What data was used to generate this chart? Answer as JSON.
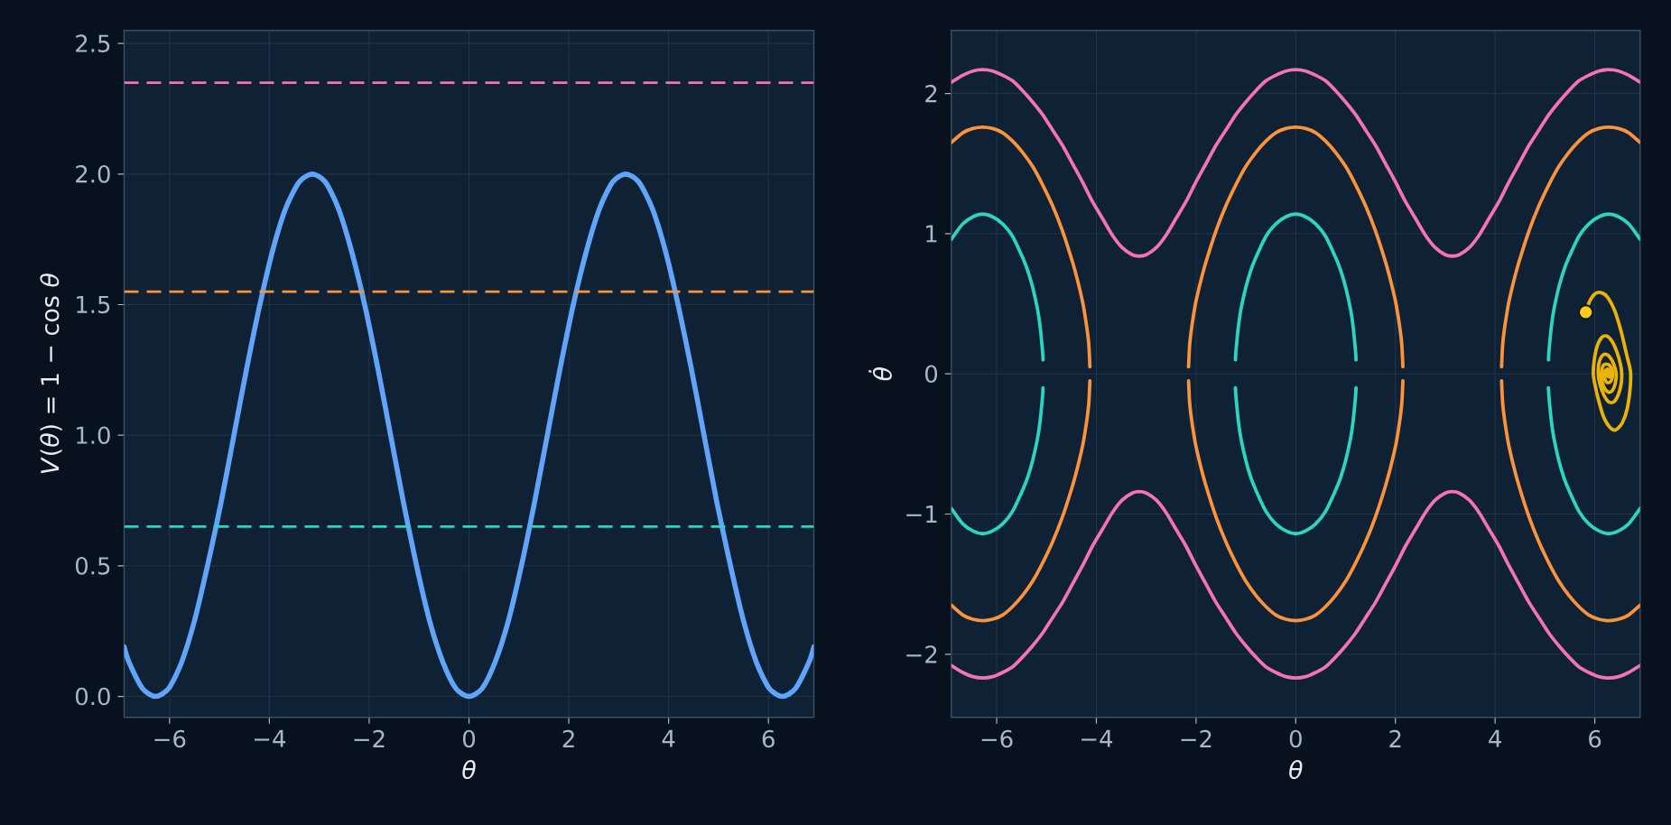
{
  "chart_data": [
    {
      "type": "line",
      "xlabel": "θ",
      "ylabel": "*V*(*θ*) = 1 − cos *θ*",
      "xlim": [
        -6.91,
        6.91
      ],
      "ylim": [
        -0.08,
        2.55
      ],
      "xticks": [
        {
          "value": -6,
          "label": "−6"
        },
        {
          "value": -4,
          "label": "−4"
        },
        {
          "value": -2,
          "label": "−2"
        },
        0,
        2,
        4,
        6
      ],
      "yticks": [
        {
          "value": 0,
          "label": "0.0"
        },
        0.5,
        {
          "value": 1,
          "label": "1.0"
        },
        1.5,
        {
          "value": 2,
          "label": "2.0"
        },
        2.5
      ],
      "grid": true,
      "x": [
        -6.91,
        -6.81,
        -6.54,
        -6.28,
        -6.02,
        -5.76,
        -5.5,
        -5.24,
        -4.97,
        -4.71,
        -4.45,
        -4.19,
        -3.93,
        -3.67,
        -3.4,
        -3.14,
        -2.88,
        -2.62,
        -2.36,
        -2.09,
        -1.83,
        -1.57,
        -1.31,
        -1.05,
        -0.79,
        -0.52,
        -0.26,
        0,
        0.26,
        0.52,
        0.79,
        1.05,
        1.31,
        1.57,
        1.83,
        2.09,
        2.36,
        2.62,
        2.88,
        3.14,
        3.4,
        3.67,
        3.93,
        4.19,
        4.45,
        4.71,
        4.97,
        5.24,
        5.5,
        5.76,
        6.02,
        6.28,
        6.54,
        6.81,
        6.91
      ],
      "series": [
        {
          "color": "#60a5fa",
          "values": [
            0.19,
            0.13,
            0.03,
            0,
            0.03,
            0.13,
            0.29,
            0.5,
            0.74,
            1,
            1.26,
            1.5,
            1.71,
            1.87,
            1.97,
            2,
            1.97,
            1.87,
            1.71,
            1.5,
            1.26,
            1,
            0.74,
            0.5,
            0.29,
            0.13,
            0.03,
            0,
            0.03,
            0.13,
            0.29,
            0.5,
            0.74,
            1,
            1.26,
            1.5,
            1.71,
            1.87,
            1.97,
            2,
            1.97,
            1.87,
            1.71,
            1.5,
            1.26,
            1,
            0.74,
            0.5,
            0.29,
            0.13,
            0.03,
            0,
            0.03,
            0.13,
            0.19
          ]
        }
      ],
      "ref_lines": [
        {
          "axis": "y",
          "value": 0.65,
          "color": "#2dd4bf",
          "line_style": "dashed"
        },
        {
          "axis": "y",
          "value": 1.55,
          "color": "#fb923c",
          "line_style": "dashed"
        },
        {
          "axis": "y",
          "value": 2.35,
          "color": "#f472b6",
          "line_style": "dashed"
        }
      ]
    },
    {
      "type": "line",
      "xlabel": "θ",
      "ylabel": "θ̇",
      "xlim": [
        -6.91,
        6.91
      ],
      "ylim": [
        -2.45,
        2.45
      ],
      "xticks": [
        {
          "value": -6,
          "label": "−6"
        },
        {
          "value": -4,
          "label": "−4"
        },
        {
          "value": -2,
          "label": "−2"
        },
        0,
        2,
        4,
        6
      ],
      "yticks": [
        {
          "value": -2,
          "label": "−2"
        },
        {
          "value": -1,
          "label": "−1"
        },
        0,
        1,
        2
      ],
      "grid": true,
      "series": [
        {
          "color": "#2dd4bf",
          "x": [
            -6.91,
            -6.68,
            -6.48,
            -6.28,
            -6.08,
            -5.88,
            -5.68,
            -5.48,
            -5.38,
            -5.28,
            -5.18,
            -5.13,
            -5.08,
            -5.07,
            -3.14,
            -1.21,
            -1.2,
            -1.15,
            -1.1,
            -1.0,
            -0.9,
            -0.8,
            -0.6,
            -0.4,
            -0.2,
            0,
            0.2,
            0.4,
            0.6,
            0.8,
            0.9,
            1.0,
            1.1,
            1.15,
            1.2,
            1.21,
            3.14,
            5.07,
            5.08,
            5.13,
            5.18,
            5.28,
            5.38,
            5.48,
            5.68,
            5.88,
            6.08,
            6.28,
            6.48,
            6.68,
            6.91
          ],
          "values": [
            0.96,
            1.07,
            1.12,
            1.14,
            1.12,
            1.07,
            0.98,
            0.83,
            0.74,
            0.62,
            0.46,
            0.34,
            0.16,
            0.1,
            null,
            0.1,
            0.16,
            0.34,
            0.46,
            0.62,
            0.74,
            0.83,
            0.98,
            1.07,
            1.12,
            1.14,
            1.12,
            1.07,
            0.98,
            0.83,
            0.74,
            0.62,
            0.46,
            0.34,
            0.16,
            0.1,
            null,
            0.1,
            0.16,
            0.34,
            0.46,
            0.62,
            0.74,
            0.83,
            0.98,
            1.07,
            1.12,
            1.14,
            1.12,
            1.07,
            0.96
          ]
        },
        {
          "color": "#2dd4bf",
          "x": [
            -6.91,
            -6.68,
            -6.48,
            -6.28,
            -6.08,
            -5.88,
            -5.68,
            -5.48,
            -5.38,
            -5.28,
            -5.18,
            -5.13,
            -5.08,
            -5.07,
            -3.14,
            -1.21,
            -1.2,
            -1.15,
            -1.1,
            -1.0,
            -0.9,
            -0.8,
            -0.6,
            -0.4,
            -0.2,
            0,
            0.2,
            0.4,
            0.6,
            0.8,
            0.9,
            1.0,
            1.1,
            1.15,
            1.2,
            1.21,
            3.14,
            5.07,
            5.08,
            5.13,
            5.18,
            5.28,
            5.38,
            5.48,
            5.68,
            5.88,
            6.08,
            6.28,
            6.48,
            6.68,
            6.91
          ],
          "values": [
            -0.96,
            -1.07,
            -1.12,
            -1.14,
            -1.12,
            -1.07,
            -0.98,
            -0.83,
            -0.74,
            -0.62,
            -0.46,
            -0.34,
            -0.16,
            -0.1,
            null,
            -0.1,
            -0.16,
            -0.34,
            -0.46,
            -0.62,
            -0.74,
            -0.83,
            -0.98,
            -1.07,
            -1.12,
            -1.14,
            -1.12,
            -1.07,
            -0.98,
            -0.83,
            -0.74,
            -0.62,
            -0.46,
            -0.34,
            -0.16,
            -0.1,
            null,
            -0.1,
            -0.16,
            -0.34,
            -0.46,
            -0.62,
            -0.74,
            -0.83,
            -0.98,
            -1.07,
            -1.12,
            -1.14,
            -1.12,
            -1.07,
            -0.96
          ]
        },
        {
          "color": "#fb923c",
          "x": [
            -6.91,
            -6.68,
            -6.48,
            -6.28,
            -6.08,
            -5.88,
            -5.68,
            -5.48,
            -5.28,
            -5.08,
            -4.88,
            -4.68,
            -4.48,
            -4.38,
            -4.28,
            -4.23,
            -4.18,
            -4.15,
            -4.13,
            -3.14,
            -2.15,
            -2.13,
            -2.1,
            -2.05,
            -2.0,
            -1.9,
            -1.8,
            -1.6,
            -1.4,
            -1.2,
            -1.0,
            -0.8,
            -0.6,
            -0.4,
            -0.2,
            0,
            0.2,
            0.4,
            0.6,
            0.8,
            1.0,
            1.2,
            1.4,
            1.6,
            1.8,
            1.9,
            2.0,
            2.05,
            2.1,
            2.13,
            2.15,
            3.14,
            4.13,
            4.15,
            4.18,
            4.23,
            4.28,
            4.38,
            4.48,
            4.68,
            4.88,
            5.08,
            5.28,
            5.48,
            5.68,
            5.88,
            6.08,
            6.28,
            6.48,
            6.68,
            6.91
          ],
          "values": [
            1.65,
            1.72,
            1.75,
            1.76,
            1.75,
            1.72,
            1.66,
            1.58,
            1.48,
            1.35,
            1.2,
            1.02,
            0.8,
            0.67,
            0.52,
            0.42,
            0.3,
            0.2,
            0.05,
            null,
            0.05,
            0.2,
            0.3,
            0.42,
            0.52,
            0.67,
            0.8,
            1.02,
            1.2,
            1.35,
            1.48,
            1.58,
            1.66,
            1.72,
            1.75,
            1.76,
            1.75,
            1.72,
            1.66,
            1.58,
            1.48,
            1.35,
            1.2,
            1.02,
            0.8,
            0.67,
            0.52,
            0.42,
            0.3,
            0.2,
            0.05,
            null,
            0.05,
            0.2,
            0.3,
            0.42,
            0.52,
            0.67,
            0.8,
            1.02,
            1.2,
            1.35,
            1.48,
            1.58,
            1.66,
            1.72,
            1.75,
            1.76,
            1.75,
            1.72,
            1.65
          ]
        },
        {
          "color": "#fb923c",
          "x": [
            -6.91,
            -6.68,
            -6.48,
            -6.28,
            -6.08,
            -5.88,
            -5.68,
            -5.48,
            -5.28,
            -5.08,
            -4.88,
            -4.68,
            -4.48,
            -4.38,
            -4.28,
            -4.23,
            -4.18,
            -4.15,
            -4.13,
            -3.14,
            -2.15,
            -2.13,
            -2.1,
            -2.05,
            -2.0,
            -1.9,
            -1.8,
            -1.6,
            -1.4,
            -1.2,
            -1.0,
            -0.8,
            -0.6,
            -0.4,
            -0.2,
            0,
            0.2,
            0.4,
            0.6,
            0.8,
            1.0,
            1.2,
            1.4,
            1.6,
            1.8,
            1.9,
            2.0,
            2.05,
            2.1,
            2.13,
            2.15,
            3.14,
            4.13,
            4.15,
            4.18,
            4.23,
            4.28,
            4.38,
            4.48,
            4.68,
            4.88,
            5.08,
            5.28,
            5.48,
            5.68,
            5.88,
            6.08,
            6.28,
            6.48,
            6.68,
            6.91
          ],
          "values": [
            -1.65,
            -1.72,
            -1.75,
            -1.76,
            -1.75,
            -1.72,
            -1.66,
            -1.58,
            -1.48,
            -1.35,
            -1.2,
            -1.02,
            -0.8,
            -0.67,
            -0.52,
            -0.42,
            -0.3,
            -0.2,
            -0.05,
            null,
            -0.05,
            -0.2,
            -0.3,
            -0.42,
            -0.52,
            -0.67,
            -0.8,
            -1.02,
            -1.2,
            -1.35,
            -1.48,
            -1.58,
            -1.66,
            -1.72,
            -1.75,
            -1.76,
            -1.75,
            -1.72,
            -1.66,
            -1.58,
            -1.48,
            -1.35,
            -1.2,
            -1.02,
            -0.8,
            -0.67,
            -0.52,
            -0.42,
            -0.3,
            -0.2,
            -0.05,
            null,
            -0.05,
            -0.2,
            -0.3,
            -0.42,
            -0.52,
            -0.67,
            -0.8,
            -1.02,
            -1.2,
            -1.35,
            -1.48,
            -1.58,
            -1.66,
            -1.72,
            -1.75,
            -1.76,
            -1.75,
            -1.72,
            -1.65
          ]
        },
        {
          "color": "#f472b6",
          "x": [
            -6.91,
            -6.68,
            -6.48,
            -6.28,
            -6.08,
            -5.88,
            -5.68,
            -5.48,
            -5.28,
            -5.08,
            -4.88,
            -4.68,
            -4.48,
            -4.28,
            -4.08,
            -3.88,
            -3.68,
            -3.48,
            -3.28,
            -3.14,
            -3.0,
            -2.8,
            -2.6,
            -2.4,
            -2.2,
            -2.0,
            -1.8,
            -1.6,
            -1.4,
            -1.2,
            -1.0,
            -0.8,
            -0.6,
            -0.4,
            -0.2,
            0,
            0.2,
            0.4,
            0.6,
            0.8,
            1.0,
            1.2,
            1.4,
            1.6,
            1.8,
            2.0,
            2.2,
            2.4,
            2.6,
            2.8,
            3.0,
            3.14,
            3.28,
            3.48,
            3.68,
            3.88,
            4.08,
            4.28,
            4.48,
            4.68,
            4.88,
            5.08,
            5.28,
            5.48,
            5.68,
            5.88,
            6.08,
            6.28,
            6.48,
            6.68,
            6.91
          ],
          "values": [
            2.08,
            2.13,
            2.16,
            2.17,
            2.16,
            2.13,
            2.09,
            2.02,
            1.94,
            1.85,
            1.74,
            1.63,
            1.5,
            1.37,
            1.23,
            1.11,
            0.99,
            0.9,
            0.85,
            0.84,
            0.85,
            0.9,
            0.99,
            1.11,
            1.23,
            1.37,
            1.5,
            1.63,
            1.74,
            1.85,
            1.94,
            2.02,
            2.09,
            2.13,
            2.16,
            2.17,
            2.16,
            2.13,
            2.09,
            2.02,
            1.94,
            1.85,
            1.74,
            1.63,
            1.5,
            1.37,
            1.23,
            1.11,
            0.99,
            0.9,
            0.85,
            0.84,
            0.85,
            0.9,
            0.99,
            1.11,
            1.23,
            1.37,
            1.5,
            1.63,
            1.74,
            1.85,
            1.94,
            2.02,
            2.09,
            2.13,
            2.16,
            2.17,
            2.16,
            2.13,
            2.08
          ]
        },
        {
          "color": "#f472b6",
          "x": [
            -6.91,
            -6.68,
            -6.48,
            -6.28,
            -6.08,
            -5.88,
            -5.68,
            -5.48,
            -5.28,
            -5.08,
            -4.88,
            -4.68,
            -4.48,
            -4.28,
            -4.08,
            -3.88,
            -3.68,
            -3.48,
            -3.28,
            -3.14,
            -3.0,
            -2.8,
            -2.6,
            -2.4,
            -2.2,
            -2.0,
            -1.8,
            -1.6,
            -1.4,
            -1.2,
            -1.0,
            -0.8,
            -0.6,
            -0.4,
            -0.2,
            0,
            0.2,
            0.4,
            0.6,
            0.8,
            1.0,
            1.2,
            1.4,
            1.6,
            1.8,
            2.0,
            2.2,
            2.4,
            2.6,
            2.8,
            3.0,
            3.14,
            3.28,
            3.48,
            3.68,
            3.88,
            4.08,
            4.28,
            4.48,
            4.68,
            4.88,
            5.08,
            5.28,
            5.48,
            5.68,
            5.88,
            6.08,
            6.28,
            6.48,
            6.68,
            6.91
          ],
          "values": [
            -2.08,
            -2.13,
            -2.16,
            -2.17,
            -2.16,
            -2.13,
            -2.09,
            -2.02,
            -1.94,
            -1.85,
            -1.74,
            -1.63,
            -1.5,
            -1.37,
            -1.23,
            -1.11,
            -0.99,
            -0.9,
            -0.85,
            -0.84,
            -0.85,
            -0.9,
            -0.99,
            -1.11,
            -1.23,
            -1.37,
            -1.5,
            -1.63,
            -1.74,
            -1.85,
            -1.94,
            -2.02,
            -2.09,
            -2.13,
            -2.16,
            -2.17,
            -2.16,
            -2.13,
            -2.09,
            -2.02,
            -1.94,
            -1.85,
            -1.74,
            -1.63,
            -1.5,
            -1.37,
            -1.23,
            -1.11,
            -0.99,
            -0.9,
            -0.85,
            -0.84,
            -0.85,
            -0.9,
            -0.99,
            -1.11,
            -1.23,
            -1.37,
            -1.5,
            -1.63,
            -1.74,
            -1.85,
            -1.94,
            -2.02,
            -2.09,
            -2.13,
            -2.16,
            -2.17,
            -2.16,
            -2.13,
            -2.08
          ]
        },
        {
          "color": "#eab308",
          "x": [
            5.82,
            5.9,
            6.0,
            6.12,
            6.25,
            6.4,
            6.53,
            6.63,
            6.7,
            6.72,
            6.71,
            6.65,
            6.55,
            6.42,
            6.3,
            6.18,
            6.07,
            6.0,
            5.97,
            5.99,
            6.05,
            6.14,
            6.24,
            6.35,
            6.45,
            6.52,
            6.54,
            6.53,
            6.47,
            6.38,
            6.28,
            6.18,
            6.1,
            6.07,
            6.08,
            6.13,
            6.21,
            6.3,
            6.38,
            6.43,
            6.41,
            6.35,
            6.27,
            6.19,
            6.14,
            6.14,
            6.17,
            6.23,
            6.3,
            6.35,
            6.35,
            6.3,
            6.24,
            6.2,
            6.2,
            6.23,
            6.28,
            6.31,
            6.3,
            6.27,
            6.25,
            6.27,
            6.28
          ],
          "values": [
            0.44,
            0.52,
            0.57,
            0.58,
            0.55,
            0.45,
            0.3,
            0.15,
            0.05,
            0,
            -0.1,
            -0.25,
            -0.35,
            -0.4,
            -0.38,
            -0.31,
            -0.18,
            -0.07,
            0,
            0.1,
            0.2,
            0.26,
            0.27,
            0.23,
            0.15,
            0.06,
            0,
            -0.07,
            -0.15,
            -0.2,
            -0.2,
            -0.15,
            -0.07,
            0,
            0.07,
            0.12,
            0.14,
            0.12,
            0.07,
            0,
            -0.07,
            -0.12,
            -0.13,
            -0.1,
            -0.04,
            0.02,
            0.06,
            0.07,
            0.06,
            0.02,
            -0.03,
            -0.06,
            -0.06,
            -0.03,
            0.01,
            0.03,
            0.03,
            0.01,
            -0.02,
            -0.02,
            0,
            0.01,
            0
          ]
        },
        {
          "type": "scatter",
          "marker": "circle",
          "color": "#facc15",
          "x": [
            5.82
          ],
          "values": [
            0.44
          ]
        }
      ]
    }
  ]
}
